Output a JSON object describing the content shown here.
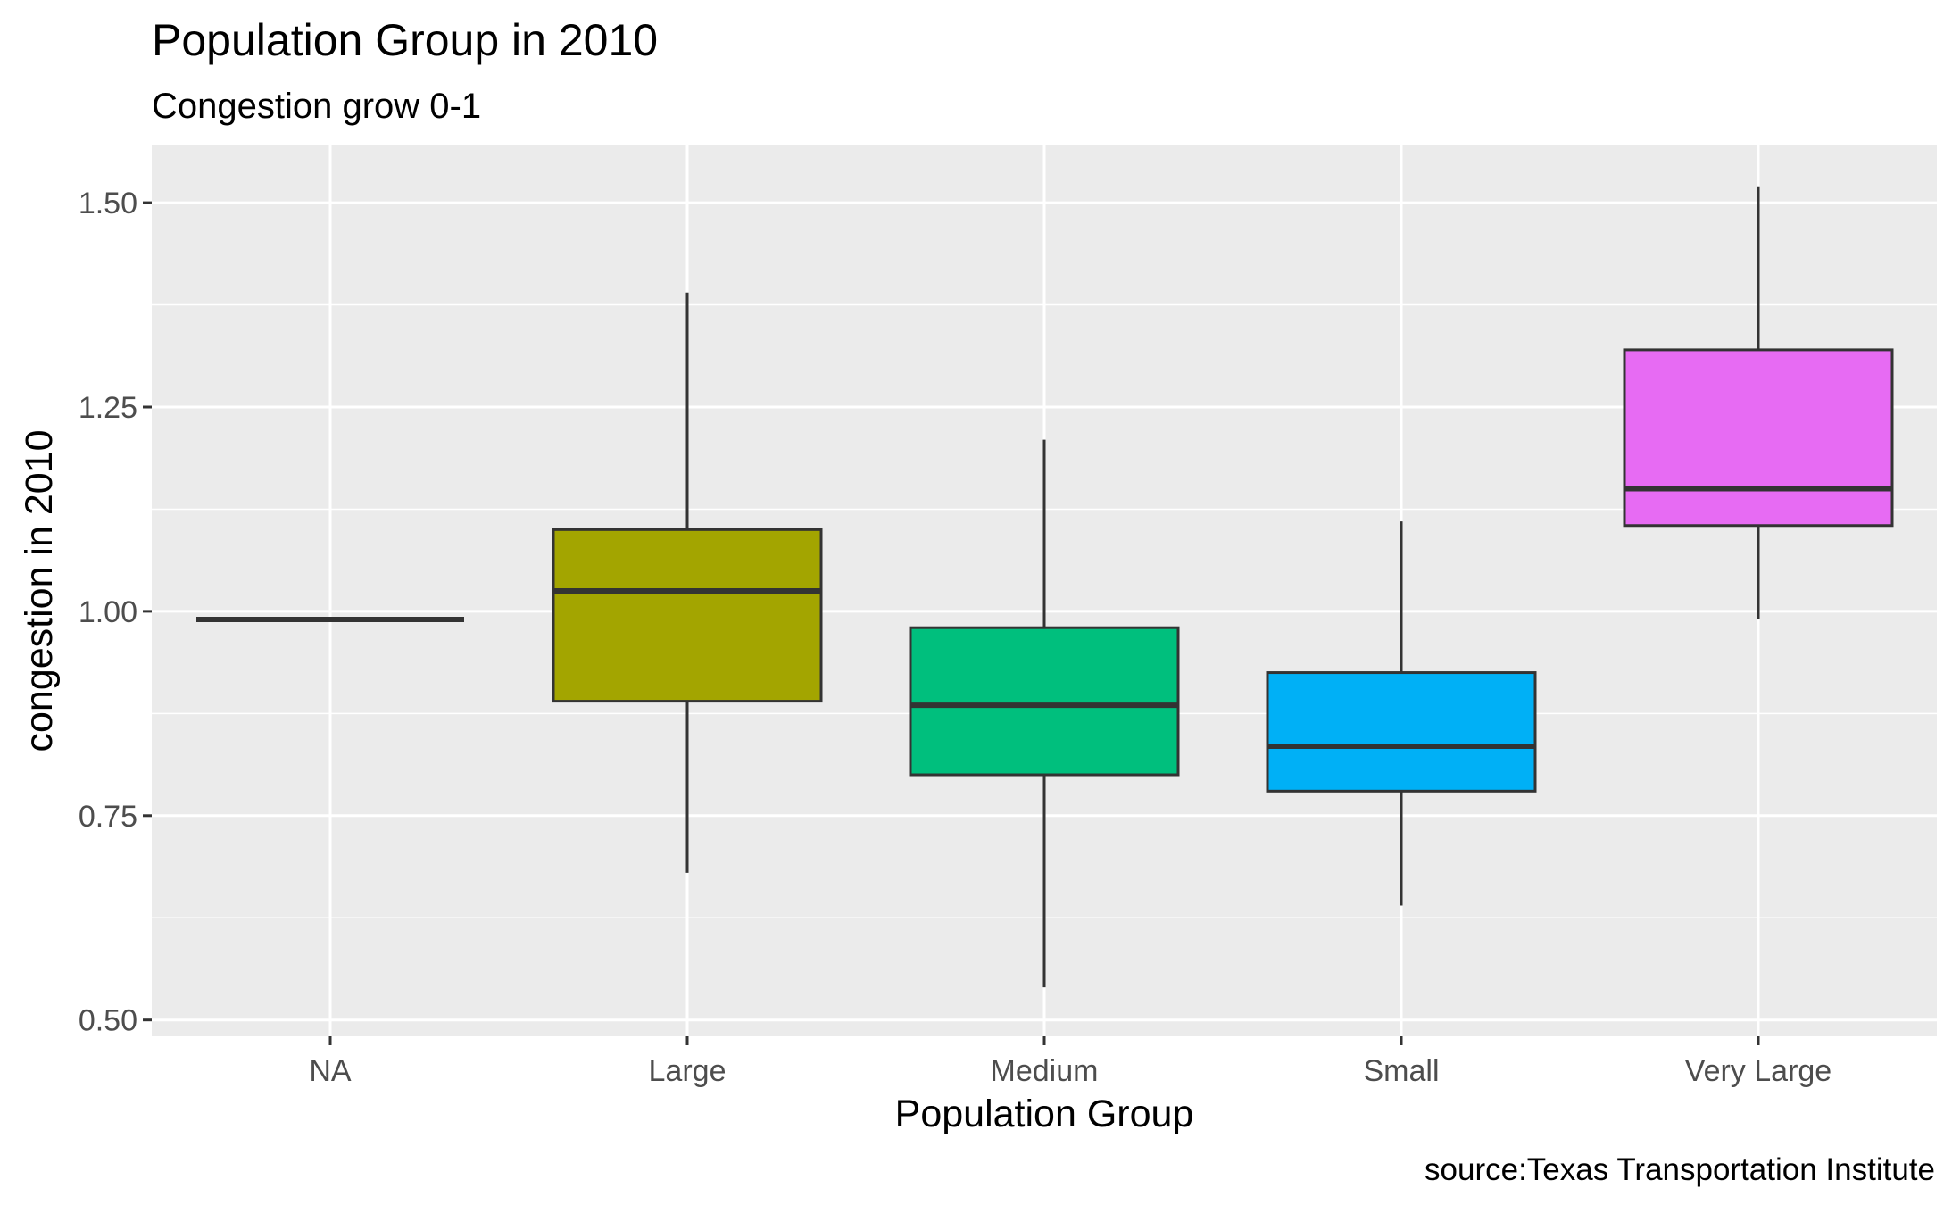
{
  "chart_data": {
    "type": "boxplot",
    "title": "Population Group in 2010",
    "subtitle": "Congestion grow 0-1",
    "xlabel": "Population Group",
    "ylabel": "congestion in 2010",
    "caption": "source:Texas Transportation Institute",
    "categories": [
      "NA",
      "Large",
      "Medium",
      "Small",
      "Very Large"
    ],
    "ylim": [
      0.48,
      1.57
    ],
    "yticks": [
      0.5,
      0.75,
      1.0,
      1.25,
      1.5
    ],
    "ytick_labels": [
      "0.50",
      "0.75",
      "1.00",
      "1.25",
      "1.50"
    ],
    "grid": true,
    "legend": "none",
    "boxes": [
      {
        "category": "NA",
        "min": 0.99,
        "q1": 0.99,
        "median": 0.99,
        "q3": 0.99,
        "max": 0.99,
        "color": "#F8766D"
      },
      {
        "category": "Large",
        "min": 0.68,
        "q1": 0.89,
        "median": 1.025,
        "q3": 1.1,
        "max": 1.39,
        "color": "#A3A500"
      },
      {
        "category": "Medium",
        "min": 0.54,
        "q1": 0.8,
        "median": 0.885,
        "q3": 0.98,
        "max": 1.21,
        "color": "#00BF7D"
      },
      {
        "category": "Small",
        "min": 0.64,
        "q1": 0.78,
        "median": 0.835,
        "q3": 0.925,
        "max": 1.11,
        "color": "#00B0F6"
      },
      {
        "category": "Very Large",
        "min": 0.99,
        "q1": 1.105,
        "median": 1.15,
        "q3": 1.32,
        "max": 1.52,
        "color": "#E76BF3"
      }
    ]
  }
}
